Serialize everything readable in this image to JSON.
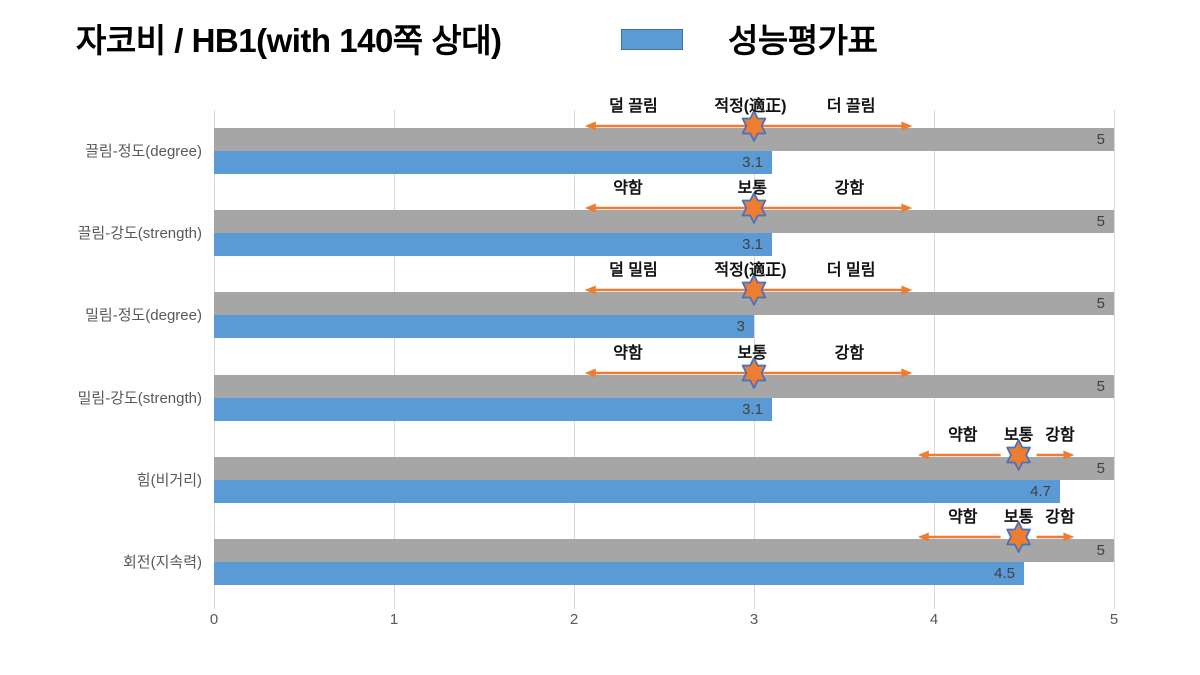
{
  "title": "자코비 / HB1(with 140쪽 상대)",
  "legend": {
    "label": "성능평가표",
    "swatch_color": "#5b9bd5",
    "swatch_border": "#41719c"
  },
  "colors": {
    "bar_blue": "#5b9bd5",
    "bar_gray": "#a6a6a6",
    "arrow": "#ed7d31",
    "star_fill": "#ed7d31",
    "star_stroke": "#4472c4",
    "gridline": "#d9d9d9",
    "axis_text": "#595959",
    "value_text": "#404040",
    "annotation_text": "#111111"
  },
  "chart_data": {
    "type": "bar",
    "orientation": "horizontal",
    "title": "자코비 / HB1(with 140쪽 상대)",
    "categories": [
      "끌림-정도(degree)",
      "끌림-강도(strength)",
      "밀림-정도(degree)",
      "밀림-강도(strength)",
      "힘(비거리)",
      "회전(지속력)"
    ],
    "series": [
      {
        "name": "",
        "color": "#a6a6a6",
        "values": [
          5,
          5,
          5,
          5,
          5,
          5
        ]
      },
      {
        "name": "성능평가표",
        "color": "#5b9bd5",
        "values": [
          3.1,
          3.1,
          3,
          3.1,
          4.7,
          4.5
        ]
      }
    ],
    "xlim": [
      0,
      5
    ],
    "x_ticks": [
      "0",
      "1",
      "2",
      "3",
      "4",
      "5"
    ],
    "grid": "vertical",
    "legend_position": "top",
    "annotations": [
      {
        "labels": [
          {
            "text": "덜 끌림",
            "x": 2.33
          },
          {
            "text": "적정(適正)",
            "x": 2.98
          },
          {
            "text": "더 끌림",
            "x": 3.54
          }
        ],
        "segments": [
          {
            "x1": 2.06,
            "x2": 3.88,
            "heads": "both"
          }
        ],
        "marker_x": 3.0
      },
      {
        "labels": [
          {
            "text": "약함",
            "x": 2.3
          },
          {
            "text": "보통",
            "x": 2.99
          },
          {
            "text": "강함",
            "x": 3.53
          }
        ],
        "segments": [
          {
            "x1": 2.06,
            "x2": 3.88,
            "heads": "both"
          }
        ],
        "marker_x": 3.0
      },
      {
        "labels": [
          {
            "text": "덜 밀림",
            "x": 2.33
          },
          {
            "text": "적정(適正)",
            "x": 2.98
          },
          {
            "text": "더 밀림",
            "x": 3.54
          }
        ],
        "segments": [
          {
            "x1": 2.06,
            "x2": 3.88,
            "heads": "both"
          }
        ],
        "marker_x": 3.0
      },
      {
        "labels": [
          {
            "text": "약함",
            "x": 2.3
          },
          {
            "text": "보통",
            "x": 2.99
          },
          {
            "text": "강함",
            "x": 3.53
          }
        ],
        "segments": [
          {
            "x1": 2.06,
            "x2": 3.88,
            "heads": "both"
          }
        ],
        "marker_x": 3.0
      },
      {
        "labels": [
          {
            "text": "약함",
            "x": 4.16
          },
          {
            "text": "보통",
            "x": 4.47
          },
          {
            "text": "강함",
            "x": 4.7
          }
        ],
        "segments": [
          {
            "x1": 3.91,
            "x2": 4.37,
            "heads": "left"
          },
          {
            "x1": 4.57,
            "x2": 4.78,
            "heads": "right"
          }
        ],
        "marker_x": 4.47
      },
      {
        "labels": [
          {
            "text": "약함",
            "x": 4.16
          },
          {
            "text": "보통",
            "x": 4.47
          },
          {
            "text": "강함",
            "x": 4.7
          }
        ],
        "segments": [
          {
            "x1": 3.91,
            "x2": 4.37,
            "heads": "left"
          },
          {
            "x1": 4.57,
            "x2": 4.78,
            "heads": "right"
          }
        ],
        "marker_x": 4.47
      }
    ]
  }
}
